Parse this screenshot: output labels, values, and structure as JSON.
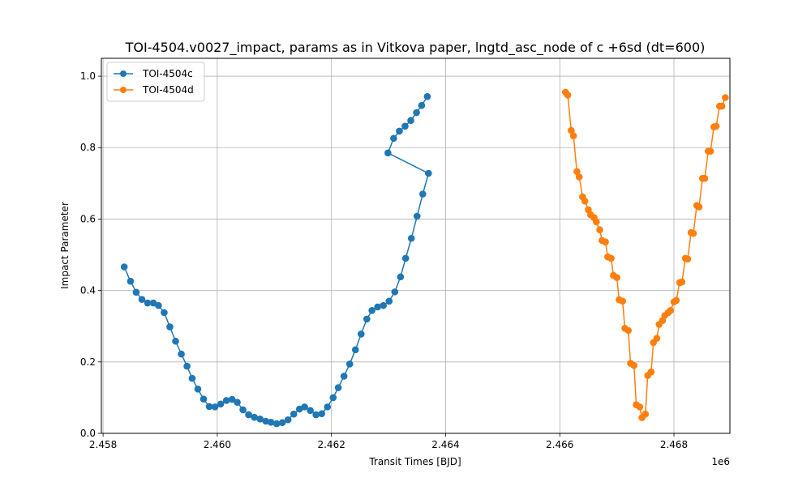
{
  "chart_data": {
    "type": "line",
    "title": "TOI-4504.v0027_impact, params as in Vitkova paper, lngtd_asc_node of c +6sd (dt=600)",
    "xlabel": "Transit Times [BJD]",
    "ylabel": "Impact Parameter",
    "x_offset_label": "1e6",
    "xlim": [
      2.45797,
      2.46898
    ],
    "ylim": [
      0.0,
      1.05
    ],
    "x_ticks": [
      2.458,
      2.46,
      2.462,
      2.464,
      2.466,
      2.468
    ],
    "x_tick_labels": [
      "2.458",
      "2.460",
      "2.462",
      "2.464",
      "2.466",
      "2.468"
    ],
    "y_ticks": [
      0.0,
      0.2,
      0.4,
      0.6,
      0.8,
      1.0
    ],
    "y_tick_labels": [
      "0.0",
      "0.2",
      "0.4",
      "0.6",
      "0.8",
      "1.0"
    ],
    "grid": true,
    "legend_position": "top-left",
    "series": [
      {
        "name": "TOI-4504c",
        "color": "#1f77b4",
        "marker": "circle",
        "x": [
          2.45837,
          2.45848,
          2.45858,
          2.45868,
          2.45878,
          2.45888,
          2.45897,
          2.45907,
          2.45917,
          2.45927,
          2.45937,
          2.45947,
          2.45956,
          2.45966,
          2.45976,
          2.45986,
          2.45996,
          2.46006,
          2.46016,
          2.46026,
          2.46035,
          2.46045,
          2.46055,
          2.46065,
          2.46075,
          2.46085,
          2.46094,
          2.46104,
          2.46114,
          2.46124,
          2.46134,
          2.46144,
          2.46153,
          2.46163,
          2.46173,
          2.46183,
          2.46193,
          2.46203,
          2.46212,
          2.46222,
          2.46232,
          2.46242,
          2.46252,
          2.46262,
          2.46271,
          2.46281,
          2.46291,
          2.46301,
          2.46311,
          2.46321,
          2.4633,
          2.4634,
          2.4635,
          2.4636,
          2.4637
        ],
        "y": [
          0.466,
          0.426,
          0.395,
          0.375,
          0.365,
          0.365,
          0.358,
          0.338,
          0.298,
          0.258,
          0.222,
          0.188,
          0.154,
          0.124,
          0.096,
          0.075,
          0.074,
          0.082,
          0.092,
          0.095,
          0.087,
          0.066,
          0.052,
          0.045,
          0.04,
          0.034,
          0.031,
          0.027,
          0.03,
          0.038,
          0.054,
          0.068,
          0.074,
          0.064,
          0.052,
          0.055,
          0.074,
          0.1,
          0.128,
          0.16,
          0.194,
          0.234,
          0.278,
          0.32,
          0.344,
          0.354,
          0.358,
          0.37,
          0.396,
          0.438,
          0.49,
          0.546,
          0.608,
          0.67,
          0.728
        ],
        "x_tail": [
          2.46299,
          2.46309,
          2.46319,
          2.46329,
          2.46339,
          2.46349,
          2.46358,
          2.46368
        ],
        "y_tail": [
          0.785,
          0.826,
          0.846,
          0.86,
          0.876,
          0.898,
          0.918,
          0.943
        ]
      },
      {
        "name": "TOI-4504d",
        "color": "#ff7f0e",
        "marker": "circle",
        "x": [
          2.4661,
          2.46614,
          2.4662,
          2.46624,
          2.4663,
          2.46634,
          2.4664,
          2.46644,
          2.4665,
          2.46654,
          2.4666,
          2.46664,
          2.4667,
          2.46674,
          2.4668,
          2.46684,
          2.4669,
          2.46694,
          2.467,
          2.46704,
          2.4671,
          2.46714,
          2.4672,
          2.46724,
          2.4673,
          2.46734,
          2.4674,
          2.46744,
          2.4675,
          2.46754,
          2.4676,
          2.46764,
          2.4677,
          2.46774,
          2.4678,
          2.46784,
          2.4679,
          2.46794,
          2.468,
          2.46804,
          2.4681,
          2.46814,
          2.4682,
          2.46824,
          2.4683,
          2.46834,
          2.4684,
          2.46844,
          2.4685,
          2.46854,
          2.4686,
          2.46864,
          2.4687,
          2.46874,
          2.4688,
          2.46884,
          2.4689
        ],
        "y": [
          0.955,
          0.947,
          0.848,
          0.833,
          0.733,
          0.718,
          0.662,
          0.65,
          0.626,
          0.612,
          0.604,
          0.592,
          0.57,
          0.54,
          0.536,
          0.494,
          0.49,
          0.442,
          0.436,
          0.374,
          0.37,
          0.294,
          0.288,
          0.196,
          0.19,
          0.08,
          0.074,
          0.044,
          0.054,
          0.162,
          0.172,
          0.254,
          0.266,
          0.305,
          0.316,
          0.33,
          0.338,
          0.344,
          0.368,
          0.372,
          0.422,
          0.424,
          0.49,
          0.488,
          0.562,
          0.56,
          0.638,
          0.634,
          0.714,
          0.714,
          0.79,
          0.79,
          0.858,
          0.86,
          0.916,
          0.916,
          0.94
        ]
      }
    ]
  }
}
